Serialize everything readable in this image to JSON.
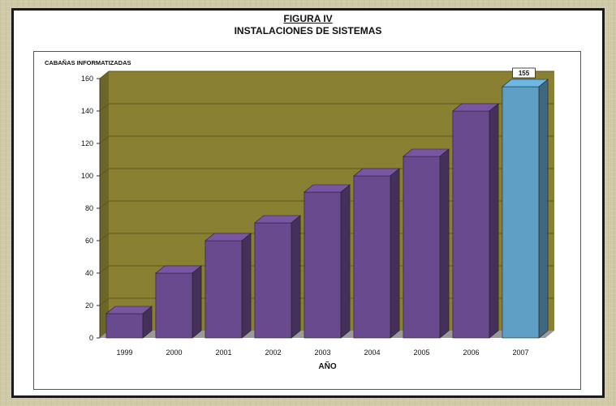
{
  "figure": {
    "label": "FIGURA IV",
    "title": "INSTALACIONES DE SISTEMAS"
  },
  "colors": {
    "plot_background": "#8a8032",
    "bar_main": "#6a4a8e",
    "bar_highlight": "#5f9fc6",
    "frame": "#1a1a1a"
  },
  "chart_data": {
    "type": "bar",
    "title": "INSTALACIONES DE SISTEMAS",
    "ylabel": "CABAÑAS INFORMATIZADAS",
    "xlabel": "AÑO",
    "categories": [
      "1999",
      "2000",
      "2001",
      "2002",
      "2003",
      "2004",
      "2005",
      "2006",
      "2007"
    ],
    "values": [
      15,
      40,
      60,
      71,
      90,
      100,
      112,
      140,
      155
    ],
    "ylim": [
      0,
      160
    ],
    "yticks": [
      "0",
      "20",
      "40",
      "60",
      "80",
      "100",
      "120",
      "140",
      "160"
    ],
    "highlight_index": 8,
    "data_labels": [
      {
        "index": 8,
        "text": "155"
      }
    ],
    "grid": true,
    "three_d": true
  }
}
